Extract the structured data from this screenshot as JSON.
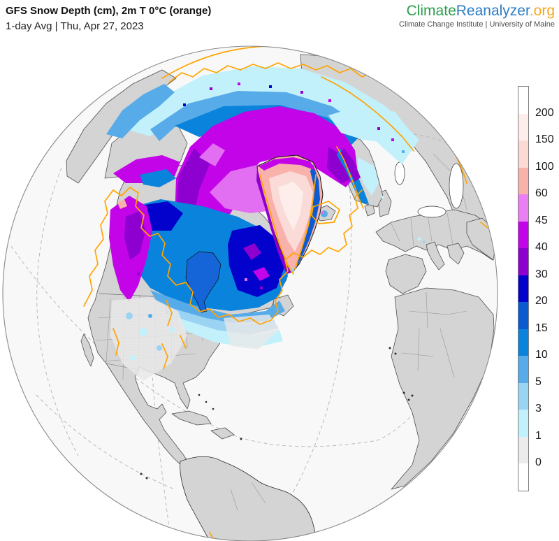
{
  "header": {
    "title": "GFS Snow Depth (cm), 2m T 0°C (orange)",
    "subtitle": "1-day Avg | Thu, Apr 27, 2023"
  },
  "logo": {
    "climate": "Climate",
    "reanalyzer": "Reanalyzer",
    "org": ".org",
    "tagline": "Climate Change Institute | University of Maine",
    "climate_color": "#2b9e4a",
    "reanalyzer_color": "#2d7cc4",
    "org_color": "#f5a81c"
  },
  "colorbar": {
    "unit": "cm",
    "tick_labels": [
      "200",
      "150",
      "100",
      "60",
      "45",
      "40",
      "30",
      "20",
      "15",
      "10",
      "5",
      "3",
      "1",
      "0"
    ],
    "segment_colors_top_to_bottom": [
      "#ffffff",
      "#fdedeb",
      "#fbdad6",
      "#f8b1ab",
      "#e97ff2",
      "#c303e8",
      "#8d00cf",
      "#0202cc",
      "#0b5bd0",
      "#0a83dc",
      "#57abe8",
      "#9bd3f3",
      "#c2f0fb",
      "#ececec",
      "#ffffff"
    ],
    "stippled_segment_index": 13
  },
  "map": {
    "projection": "orthographic globe",
    "variable": "GFS Snow Depth (cm)",
    "contour": "2m T 0°C",
    "isotherm_color": "#ffa400",
    "ocean_color": "#f8f8f8",
    "land_color": "#d4d4d4"
  }
}
